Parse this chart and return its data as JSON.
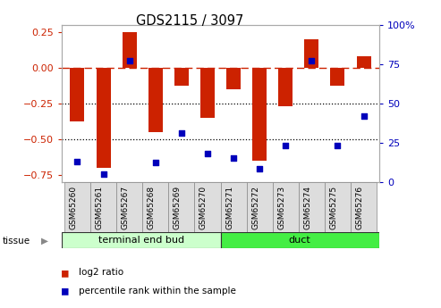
{
  "title": "GDS2115 / 3097",
  "samples": [
    "GSM65260",
    "GSM65261",
    "GSM65267",
    "GSM65268",
    "GSM65269",
    "GSM65270",
    "GSM65271",
    "GSM65272",
    "GSM65273",
    "GSM65274",
    "GSM65275",
    "GSM65276"
  ],
  "log2_ratio": [
    -0.38,
    -0.7,
    0.25,
    -0.45,
    -0.13,
    -0.35,
    -0.15,
    -0.65,
    -0.27,
    0.2,
    -0.13,
    0.08
  ],
  "percentile_rank": [
    13,
    5,
    77,
    12,
    31,
    18,
    15,
    8,
    23,
    77,
    23,
    42
  ],
  "ylim_left": [
    -0.8,
    0.3
  ],
  "ylim_right": [
    0,
    100
  ],
  "yticks_left": [
    0.25,
    0.0,
    -0.25,
    -0.5,
    -0.75
  ],
  "yticks_right": [
    100,
    75,
    50,
    25,
    0
  ],
  "hlines": [
    -0.25,
    -0.5
  ],
  "bar_color": "#cc2200",
  "dot_color": "#0000bb",
  "dashed_line_color": "#cc2200",
  "group1_label": "terminal end bud",
  "group2_label": "duct",
  "group1_color": "#ccffcc",
  "group2_color": "#44ee44",
  "group1_samples": 6,
  "tissue_label": "tissue",
  "arrow": "▶",
  "legend_bar_label": "log2 ratio",
  "legend_dot_label": "percentile rank within the sample",
  "background_color": "#ffffff",
  "plot_bg": "#ffffff",
  "tick_label_bg": "#dddddd",
  "spine_color": "#aaaaaa",
  "right_axis_color": "#0000bb",
  "left_axis_color": "#cc2200"
}
